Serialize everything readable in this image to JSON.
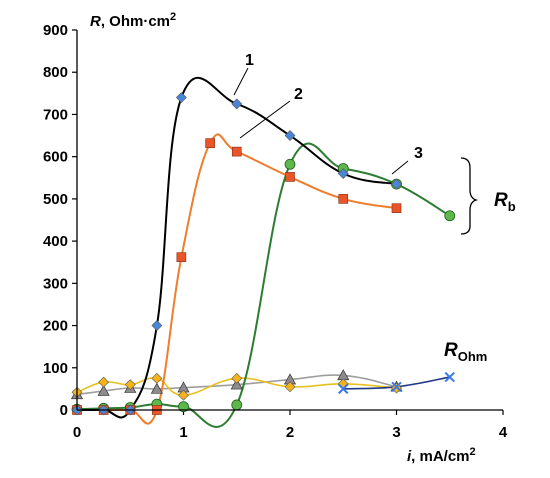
{
  "chart_data": {
    "type": "scatter",
    "xlabel_var": "i",
    "xlabel_unit": ", mA/cm",
    "xlabel_sup": "2",
    "ylabel_var": "R",
    "ylabel_unit": ", Ohm·cm",
    "ylabel_sup": "2",
    "xlim": [
      0,
      4
    ],
    "ylim": [
      0,
      900
    ],
    "xticks": [
      "0",
      "1",
      "2",
      "3",
      "4"
    ],
    "yticks": [
      "0",
      "100",
      "200",
      "300",
      "400",
      "500",
      "600",
      "700",
      "800",
      "900"
    ],
    "grid": false,
    "annotations": {
      "curve1": "1",
      "curve2": "2",
      "curve3": "3",
      "rb_main": "R",
      "rb_sub": "b",
      "rohm_main": "R",
      "rohm_sub": "Ohm"
    },
    "series": [
      {
        "id": "rb1",
        "color": "#000000",
        "marker": "diamond",
        "marker_fill": "#4a86d8",
        "x": [
          0.0,
          0.25,
          0.5,
          0.75,
          0.98,
          1.5,
          2.0,
          2.5,
          3.0
        ],
        "y": [
          0,
          0,
          0,
          200,
          740,
          725,
          650,
          560,
          535
        ]
      },
      {
        "id": "rb2",
        "color": "#ee7d2e",
        "marker": "square",
        "marker_fill": "#e8552a",
        "x": [
          0.0,
          0.25,
          0.5,
          0.75,
          0.98,
          1.25,
          1.5,
          2.0,
          2.5,
          3.0
        ],
        "y": [
          0,
          0,
          0,
          0,
          362,
          632,
          612,
          552,
          500,
          478
        ]
      },
      {
        "id": "rb3",
        "color": "#2e7d32",
        "marker": "circle",
        "marker_fill": "#5cb84a",
        "x": [
          0.0,
          0.25,
          0.5,
          0.75,
          1.0,
          1.5,
          2.0,
          2.5,
          3.0,
          3.5
        ],
        "y": [
          2,
          4,
          6,
          14,
          8,
          12,
          582,
          572,
          535,
          460
        ]
      },
      {
        "id": "rohm_gold",
        "color": "#e8c020",
        "marker": "diamond",
        "marker_fill": "#f5b31a",
        "x": [
          0.0,
          0.25,
          0.5,
          0.75,
          1.0,
          1.5,
          2.0,
          2.5,
          3.0
        ],
        "y": [
          42,
          66,
          60,
          75,
          35,
          75,
          55,
          62,
          52
        ]
      },
      {
        "id": "rohm_gray",
        "color": "#9e9e9e",
        "marker": "triangle",
        "marker_fill": "#8c8c8c",
        "x": [
          0.0,
          0.25,
          0.5,
          0.75,
          1.0,
          1.5,
          2.0,
          2.5,
          3.0
        ],
        "y": [
          37,
          45,
          52,
          50,
          53,
          60,
          72,
          82,
          55
        ]
      },
      {
        "id": "rohm_navy",
        "color": "#1f3a80",
        "marker": "x",
        "marker_fill": "#3a7ae8",
        "x": [
          2.5,
          3.0,
          3.5
        ],
        "y": [
          50,
          55,
          78
        ]
      }
    ]
  }
}
